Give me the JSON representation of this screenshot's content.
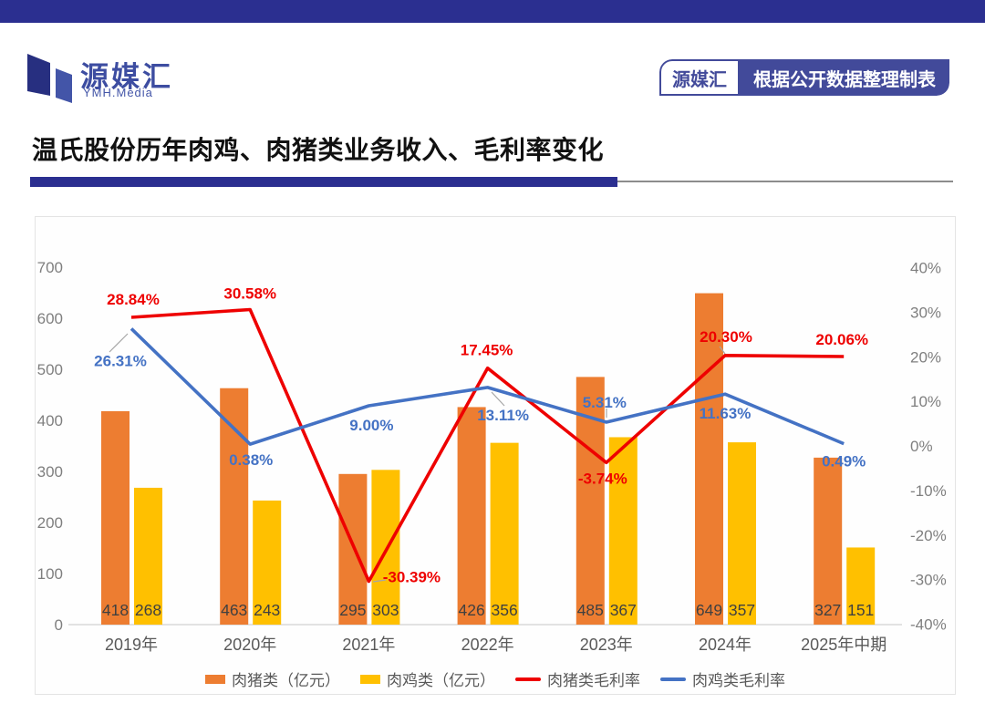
{
  "page": {
    "accent_navy": "#2B2F90"
  },
  "header": {
    "logo": {
      "text": "源媒汇",
      "subtext": "YMH.Media"
    },
    "badge": {
      "left_label": "源媒汇",
      "right_label": "根据公开数据整理制表",
      "color": "#424A9A"
    }
  },
  "title": {
    "text": "温氏股份历年肉鸡、肉猪类业务收入、毛利率变化"
  },
  "chart_data": {
    "type": "combo-bar-line",
    "title": "温氏股份历年肉鸡、肉猪类业务收入、毛利率变化",
    "categories": [
      "2019年",
      "2020年",
      "2021年",
      "2022年",
      "2023年",
      "2024年",
      "2025年中期"
    ],
    "bar_series": [
      {
        "name": "肉猪类（亿元）",
        "color": "#ED7D31",
        "values": [
          418,
          463,
          295,
          426,
          485,
          649,
          327
        ],
        "labels": [
          "418",
          "463",
          "295",
          "426",
          "485",
          "649",
          "327"
        ]
      },
      {
        "name": "肉鸡类（亿元）",
        "color": "#FFC000",
        "values": [
          268,
          243,
          303,
          356,
          367,
          357,
          151
        ],
        "labels": [
          "268",
          "243",
          "303",
          "356",
          "367",
          "357",
          "151"
        ]
      }
    ],
    "line_series": [
      {
        "name": "肉猪类毛利率",
        "color": "#EE0000",
        "values": [
          28.84,
          30.58,
          -30.39,
          17.45,
          -3.74,
          20.3,
          20.06
        ],
        "labels": [
          "28.84%",
          "30.58%",
          "-30.39%",
          "17.45%",
          "-3.74%",
          "20.30%",
          "20.06%"
        ]
      },
      {
        "name": "肉鸡类毛利率",
        "color": "#4472C4",
        "values": [
          26.31,
          0.38,
          9.0,
          13.11,
          5.31,
          11.63,
          0.49
        ],
        "labels": [
          "26.31%",
          "0.38%",
          "9.00%",
          "13.11%",
          "5.31%",
          "11.63%",
          "0.49%"
        ]
      }
    ],
    "left_axis": {
      "min": 0,
      "max": 700,
      "step": 100,
      "tick_labels": [
        "0",
        "100",
        "200",
        "300",
        "400",
        "500",
        "600",
        "700"
      ]
    },
    "right_axis": {
      "min": -40,
      "max": 40,
      "step": 10,
      "tick_labels": [
        "-40%",
        "-30%",
        "-20%",
        "-10%",
        "0%",
        "10%",
        "20%",
        "30%",
        "40%"
      ]
    },
    "grid": false,
    "legend_position": "bottom",
    "bar_label_color": "#404040",
    "axis_tick_color": "#7F7F7F",
    "category_label_color": "#595959",
    "axis_line_color": "#D9D9D9",
    "leader_line_color": "#A6A6A6"
  }
}
